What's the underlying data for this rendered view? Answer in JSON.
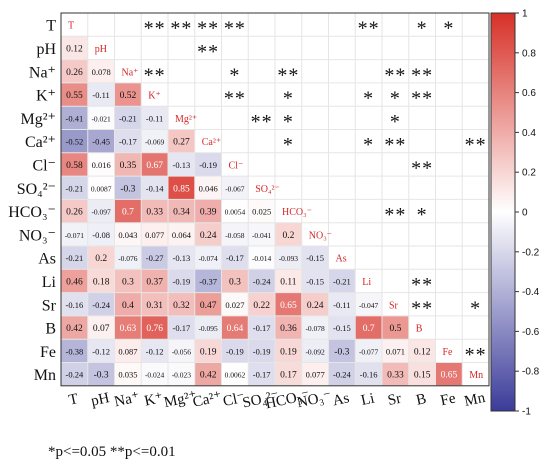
{
  "chart_data": {
    "type": "heatmap",
    "title": "",
    "xlabel": "",
    "ylabel": "",
    "variables": [
      "T",
      "pH",
      "Na⁺",
      "K⁺",
      "Mg²⁺",
      "Ca²⁺",
      "Cl⁻",
      "SO₄²⁻",
      "HCO₃⁻",
      "NO₃⁻",
      "As",
      "Li",
      "Sr",
      "B",
      "Fe",
      "Mn"
    ],
    "lower_triangle": [
      [],
      [
        0.12
      ],
      [
        0.26,
        0.078
      ],
      [
        0.55,
        -0.11,
        0.52
      ],
      [
        -0.41,
        -0.021,
        -0.21,
        -0.11
      ],
      [
        -0.52,
        -0.45,
        -0.17,
        -0.069,
        0.27
      ],
      [
        0.58,
        0.016,
        0.35,
        0.67,
        -0.13,
        -0.19
      ],
      [
        -0.21,
        0.0087,
        -0.3,
        -0.14,
        0.85,
        0.046,
        -0.067
      ],
      [
        0.26,
        -0.097,
        0.7,
        0.33,
        0.34,
        0.39,
        0.0054,
        0.025
      ],
      [
        -0.071,
        -0.08,
        0.043,
        0.077,
        0.064,
        0.24,
        -0.058,
        -0.041,
        0.2
      ],
      [
        -0.21,
        0.2,
        -0.076,
        -0.27,
        -0.13,
        -0.074,
        -0.17,
        -0.014,
        -0.093,
        -0.15
      ],
      [
        0.46,
        0.18,
        0.3,
        0.37,
        -0.19,
        -0.37,
        0.3,
        -0.24,
        0.11,
        -0.15,
        -0.21
      ],
      [
        -0.16,
        -0.24,
        0.4,
        0.31,
        0.32,
        0.47,
        0.027,
        0.22,
        0.65,
        0.24,
        -0.11,
        -0.047
      ],
      [
        0.42,
        0.07,
        0.63,
        0.76,
        -0.17,
        -0.095,
        0.64,
        -0.17,
        0.36,
        -0.078,
        -0.15,
        0.7,
        0.5
      ],
      [
        -0.38,
        -0.12,
        0.087,
        -0.12,
        -0.056,
        0.19,
        -0.19,
        -0.19,
        0.19,
        -0.092,
        -0.3,
        -0.077,
        0.071,
        0.12
      ],
      [
        -0.24,
        -0.3,
        0.035,
        -0.024,
        -0.023,
        0.42,
        0.0062,
        -0.17,
        0.17,
        0.077,
        -0.24,
        -0.16,
        0.33,
        0.15,
        0.65
      ]
    ],
    "labels_with_text": [
      [
        "T",
        "0.12",
        "0.26",
        "0.55",
        "-0.41",
        "-0.52",
        "0.58",
        "-0.21",
        "0.26",
        "-0.071",
        "-0.21",
        "0.46",
        "-0.16",
        "0.42",
        "-0.38",
        "-0.24"
      ],
      [
        "pH",
        "0.078",
        "-0.11",
        "-0.021",
        "-0.45",
        "0.016",
        "0.0087",
        "-0.097",
        "-0.08",
        "0.2",
        "0.18",
        "-0.24",
        "0.07",
        "-0.12",
        "-0.3"
      ],
      [
        "Na⁺",
        "0.52",
        "-0.21",
        "-0.17",
        "0.35",
        "-0.3",
        "0.7",
        "0.043",
        "-0.076",
        "0.3",
        "0.4",
        "0.63",
        "0.087",
        "0.035"
      ],
      [
        "K⁺",
        "-0.11",
        "-0.069",
        "0.67",
        "-0.14",
        "0.33",
        "0.077",
        "-0.27",
        "0.37",
        "0.31",
        "0.76",
        "-0.12",
        "-0.024"
      ],
      [
        "Mg²⁺",
        "0.27",
        "-0.13",
        "0.85",
        "0.34",
        "0.064",
        "-0.13",
        "-0.19",
        "0.32",
        "-0.17",
        "-0.056",
        "-0.023"
      ],
      [
        "Ca²⁺",
        "-0.19",
        "0.046",
        "0.39",
        "0.24",
        "-0.074",
        "-0.37",
        "0.47",
        "-0.095",
        "0.19",
        "0.42"
      ],
      [
        "Cl⁻",
        "-0.067",
        "0.0054",
        "-0.058",
        "-0.17",
        "0.3",
        "0.027",
        "0.64",
        "-0.19",
        "0.0062"
      ],
      [
        "SO₄²⁻",
        "0.025",
        "-0.041",
        "-0.014",
        "-0.24",
        "0.22",
        "-0.17",
        "-0.19",
        "-0.17"
      ],
      [
        "HCO₃⁻",
        "0.2",
        "-0.093",
        "0.11",
        "0.65",
        "0.36",
        "0.19",
        "0.17"
      ],
      [
        "NO₃⁻",
        "-0.15",
        "-0.15",
        "0.24",
        "-0.078",
        "-0.092",
        "0.077"
      ],
      [
        "As",
        "-0.21",
        "-0.11",
        "-0.15",
        "-0.3",
        "-0.24"
      ],
      [
        "Li",
        "-0.047",
        "0.7",
        "-0.077",
        "-0.16"
      ],
      [
        "Sr",
        "0.5",
        "0.071",
        "0.33"
      ],
      [
        "B",
        "0.12",
        "0.15"
      ],
      [
        "Fe",
        "0.65"
      ],
      [
        "Mn"
      ]
    ],
    "significance_upper": [
      {
        "row": "T",
        "col": "K⁺",
        "mark": "**"
      },
      {
        "row": "T",
        "col": "Mg²⁺",
        "mark": "**"
      },
      {
        "row": "T",
        "col": "Ca²⁺",
        "mark": "**"
      },
      {
        "row": "T",
        "col": "Cl⁻",
        "mark": "**"
      },
      {
        "row": "T",
        "col": "Li",
        "mark": "**"
      },
      {
        "row": "T",
        "col": "B",
        "mark": "*"
      },
      {
        "row": "T",
        "col": "Fe",
        "mark": "*"
      },
      {
        "row": "pH",
        "col": "Ca²⁺",
        "mark": "**"
      },
      {
        "row": "Na⁺",
        "col": "K⁺",
        "mark": "**"
      },
      {
        "row": "Na⁺",
        "col": "Cl⁻",
        "mark": "*"
      },
      {
        "row": "Na⁺",
        "col": "HCO₃⁻",
        "mark": "**"
      },
      {
        "row": "Na⁺",
        "col": "Sr",
        "mark": "**"
      },
      {
        "row": "Na⁺",
        "col": "B",
        "mark": "**"
      },
      {
        "row": "K⁺",
        "col": "Cl⁻",
        "mark": "**"
      },
      {
        "row": "K⁺",
        "col": "HCO₃⁻",
        "mark": "*"
      },
      {
        "row": "K⁺",
        "col": "Li",
        "mark": "*"
      },
      {
        "row": "K⁺",
        "col": "Sr",
        "mark": "*"
      },
      {
        "row": "K⁺",
        "col": "B",
        "mark": "**"
      },
      {
        "row": "Mg²⁺",
        "col": "SO₄²⁻",
        "mark": "**"
      },
      {
        "row": "Mg²⁺",
        "col": "HCO₃⁻",
        "mark": "*"
      },
      {
        "row": "Mg²⁺",
        "col": "Sr",
        "mark": "*"
      },
      {
        "row": "Ca²⁺",
        "col": "HCO₃⁻",
        "mark": "*"
      },
      {
        "row": "Ca²⁺",
        "col": "Li",
        "mark": "*"
      },
      {
        "row": "Ca²⁺",
        "col": "Sr",
        "mark": "**"
      },
      {
        "row": "Ca²⁺",
        "col": "Mn",
        "mark": "**"
      },
      {
        "row": "Cl⁻",
        "col": "B",
        "mark": "**"
      },
      {
        "row": "HCO₃⁻",
        "col": "Sr",
        "mark": "**"
      },
      {
        "row": "HCO₃⁻",
        "col": "B",
        "mark": "*"
      },
      {
        "row": "Li",
        "col": "B",
        "mark": "**"
      },
      {
        "row": "Sr",
        "col": "B",
        "mark": "**"
      },
      {
        "row": "Sr",
        "col": "Mn",
        "mark": "*"
      },
      {
        "row": "Fe",
        "col": "Mn",
        "mark": "**"
      }
    ],
    "colorbar": {
      "ticks": [
        "1",
        "0.8",
        "0.6",
        "0.4",
        "0.2",
        "0",
        "-0.2",
        "-0.4",
        "-0.6",
        "-0.8",
        "-1"
      ],
      "range": [
        -1,
        1
      ]
    },
    "colors": {
      "positive": "#d73027",
      "negative": "#3b3b9a",
      "neutral": "#ffffff",
      "diagonal_text": "#d62728",
      "stars": "#111111"
    },
    "note": "*p<=0.05 **p<=0.01"
  }
}
